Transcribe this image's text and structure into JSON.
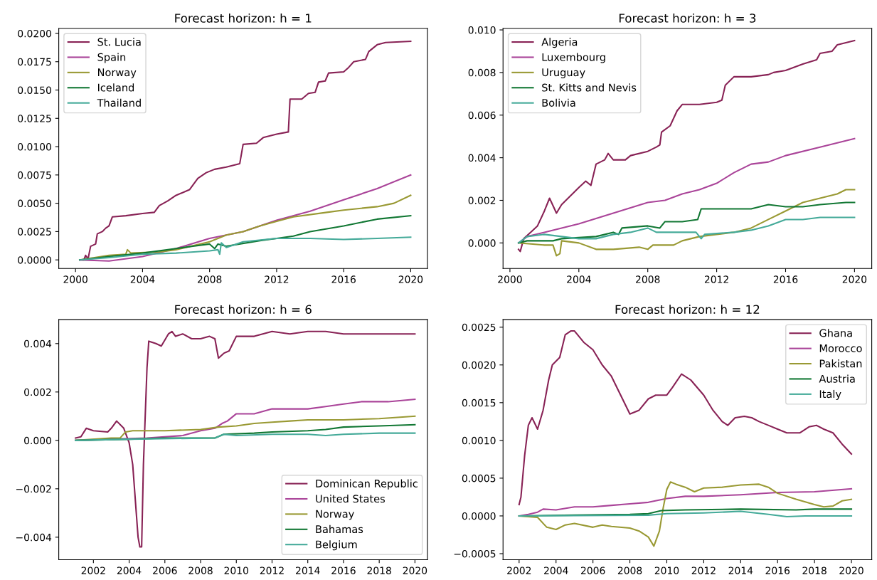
{
  "chart_data": [
    {
      "type": "line",
      "title": "Forecast horizon: h = 1",
      "legend": "top left",
      "grid": false,
      "xlim": [
        1999.0,
        2021.0
      ],
      "xticks": [
        2000,
        2004,
        2008,
        2012,
        2016,
        2020
      ],
      "ylim": [
        -0.00076,
        0.02044
      ],
      "yticks": [
        {
          "value": 0,
          "label": "0.0000"
        },
        {
          "value": 0.0025,
          "label": "0.0025"
        },
        {
          "value": 0.005,
          "label": "0.0050"
        },
        {
          "value": 0.0075,
          "label": "0.0075"
        },
        {
          "value": 0.01,
          "label": "0.0100"
        },
        {
          "value": 0.0125,
          "label": "0.0125"
        },
        {
          "value": 0.015,
          "label": "0.0150"
        },
        {
          "value": 0.0175,
          "label": "0.0175"
        },
        {
          "value": 0.02,
          "label": "0.0200"
        }
      ],
      "series": [
        {
          "name": "St. Lucia",
          "color": "#882255",
          "x": [
            2000.25,
            2000.5,
            2000.6,
            2000.75,
            2000.9,
            2001.2,
            2001.3,
            2001.6,
            2001.8,
            2002.0,
            2002.2,
            2003,
            2004,
            2004.7,
            2005,
            2005.5,
            2006,
            2006.8,
            2007.3,
            2007.8,
            2008.3,
            2009,
            2009.8,
            2010.0,
            2010.8,
            2011.2,
            2012,
            2012.7,
            2012.8,
            2013.5,
            2013.9,
            2014.3,
            2014.5,
            2014.9,
            2015.1,
            2016,
            2016.3,
            2016.6,
            2017.3,
            2017.5,
            2018,
            2018.5,
            2020
          ],
          "values": [
            0,
            0,
            0.0004,
            0.0001,
            0.0012,
            0.0014,
            0.0023,
            0.0025,
            0.0028,
            0.003,
            0.0038,
            0.0039,
            0.0041,
            0.0042,
            0.0048,
            0.0052,
            0.0057,
            0.0062,
            0.0072,
            0.0077,
            0.008,
            0.0082,
            0.0085,
            0.0102,
            0.0103,
            0.0108,
            0.0111,
            0.0113,
            0.0142,
            0.0142,
            0.0147,
            0.0148,
            0.0157,
            0.0158,
            0.0165,
            0.0166,
            0.017,
            0.0175,
            0.0177,
            0.0184,
            0.019,
            0.0192,
            0.0193
          ]
        },
        {
          "name": "Spain",
          "color": "#aa4499",
          "x": [
            2000.25,
            2002,
            2004,
            2006,
            2008,
            2010,
            2012,
            2014,
            2016,
            2018,
            2020
          ],
          "values": [
            0,
            -0.0001,
            0.0003,
            0.001,
            0.0019,
            0.0025,
            0.0035,
            0.0043,
            0.0053,
            0.0063,
            0.0075
          ]
        },
        {
          "name": "Norway",
          "color": "#999933",
          "x": [
            2000.25,
            2002,
            2003,
            2003.1,
            2003.3,
            2005,
            2006,
            2008,
            2009,
            2010,
            2011,
            2012,
            2013,
            2015,
            2016,
            2018,
            2019,
            2020
          ],
          "values": [
            0,
            0.0004,
            0.0005,
            0.0009,
            0.0006,
            0.0007,
            0.0009,
            0.0016,
            0.0022,
            0.0025,
            0.003,
            0.0034,
            0.0038,
            0.0042,
            0.0044,
            0.0047,
            0.005,
            0.0057
          ]
        },
        {
          "name": "Iceland",
          "color": "#117733",
          "x": [
            2000.25,
            2002,
            2004,
            2006,
            2007,
            2008,
            2008.3,
            2008.5,
            2009,
            2011,
            2012,
            2013,
            2014,
            2016,
            2018,
            2020
          ],
          "values": [
            0,
            0.0003,
            0.0006,
            0.001,
            0.0012,
            0.0014,
            0.001,
            0.0014,
            0.0012,
            0.0017,
            0.0019,
            0.0021,
            0.0025,
            0.003,
            0.0036,
            0.0039
          ]
        },
        {
          "name": "Thailand",
          "color": "#44aa99",
          "x": [
            2000.25,
            2002,
            2004,
            2006,
            2008,
            2008.5,
            2008.6,
            2008.7,
            2009,
            2010,
            2012,
            2014,
            2016,
            2018,
            2020
          ],
          "values": [
            0,
            0.0002,
            0.0005,
            0.0006,
            0.0008,
            0.0009,
            0.0005,
            0.0015,
            0.0011,
            0.0016,
            0.0019,
            0.0019,
            0.0018,
            0.0019,
            0.002
          ]
        }
      ]
    },
    {
      "type": "line",
      "title": "Forecast horizon: h = 3",
      "legend": "top left",
      "grid": false,
      "xlim": [
        1999.6,
        2021.0
      ],
      "xticks": [
        2000,
        2004,
        2008,
        2012,
        2016,
        2020
      ],
      "ylim": [
        -0.0012,
        0.01007
      ],
      "yticks": [
        {
          "value": 0,
          "label": "0.000"
        },
        {
          "value": 0.002,
          "label": "0.002"
        },
        {
          "value": 0.004,
          "label": "0.004"
        },
        {
          "value": 0.006,
          "label": "0.006"
        },
        {
          "value": 0.008,
          "label": "0.008"
        },
        {
          "value": 0.01,
          "label": "0.010"
        }
      ],
      "series": [
        {
          "name": "Algeria",
          "color": "#882255",
          "x": [
            2000.5,
            2000.6,
            2000.8,
            2001.2,
            2001.6,
            2002,
            2002.3,
            2002.7,
            2003,
            2003.5,
            2004,
            2004.4,
            2004.7,
            2005,
            2005.5,
            2005.7,
            2006,
            2006.7,
            2007,
            2008,
            2008.5,
            2008.7,
            2008.8,
            2009.3,
            2009.7,
            2010,
            2011,
            2012,
            2012.3,
            2012.5,
            2013,
            2014,
            2015,
            2015.3,
            2016,
            2017,
            2017.8,
            2018,
            2018.7,
            2019,
            2020
          ],
          "values": [
            -0.0003,
            -0.0004,
            0.0002,
            0.0005,
            0.0008,
            0.0015,
            0.0021,
            0.0014,
            0.0018,
            0.0022,
            0.0026,
            0.0029,
            0.0027,
            0.0037,
            0.0039,
            0.0042,
            0.0039,
            0.0039,
            0.0041,
            0.0043,
            0.0045,
            0.0046,
            0.0052,
            0.0055,
            0.0062,
            0.0065,
            0.0065,
            0.0066,
            0.0067,
            0.0074,
            0.0078,
            0.0078,
            0.0079,
            0.008,
            0.0081,
            0.0084,
            0.0086,
            0.0089,
            0.009,
            0.0093,
            0.0095
          ]
        },
        {
          "name": "Luxembourg",
          "color": "#aa4499",
          "x": [
            2000.5,
            2001,
            2002,
            2004,
            2006,
            2008,
            2009,
            2010,
            2011,
            2012,
            2013,
            2014,
            2015,
            2016,
            2018,
            2020
          ],
          "values": [
            0,
            0.0003,
            0.0005,
            0.0009,
            0.0014,
            0.0019,
            0.002,
            0.0023,
            0.0025,
            0.0028,
            0.0033,
            0.0037,
            0.0038,
            0.0041,
            0.0045,
            0.0049
          ]
        },
        {
          "name": "Uruguay",
          "color": "#999933",
          "x": [
            2000.5,
            2002,
            2002.5,
            2002.7,
            2002.9,
            2003,
            2004,
            2005,
            2006,
            2007.5,
            2008,
            2008.3,
            2009.5,
            2010,
            2011,
            2012,
            2013,
            2014,
            2015,
            2016,
            2017,
            2018,
            2019,
            2019.5,
            2020
          ],
          "values": [
            0,
            -0.0001,
            -0.0001,
            -0.0006,
            -0.0005,
            0.0001,
            0,
            -0.0003,
            -0.0003,
            -0.0002,
            -0.0003,
            -0.0001,
            -0.0001,
            0.0001,
            0.0003,
            0.0004,
            0.0005,
            0.0007,
            0.0011,
            0.0015,
            0.0019,
            0.0021,
            0.0023,
            0.0025,
            0.0025
          ]
        },
        {
          "name": "St. Kitts and Nevis",
          "color": "#117733",
          "x": [
            2000.5,
            2001,
            2002.5,
            2003,
            2005,
            2006,
            2006.3,
            2006.5,
            2008,
            2008.7,
            2009,
            2010,
            2010.9,
            2011.1,
            2013,
            2014,
            2015,
            2016,
            2017,
            2018,
            2019.5,
            2020
          ],
          "values": [
            0,
            0.0001,
            0.0001,
            0.0002,
            0.0003,
            0.0005,
            0.0004,
            0.0007,
            0.0008,
            0.0007,
            0.001,
            0.001,
            0.0011,
            0.0016,
            0.0016,
            0.0016,
            0.0018,
            0.0017,
            0.0017,
            0.0018,
            0.0019,
            0.0019
          ]
        },
        {
          "name": "Bolivia",
          "color": "#44aa99",
          "x": [
            2000.5,
            2001,
            2002,
            2003,
            2004,
            2005,
            2006,
            2007,
            2008,
            2008.5,
            2010,
            2010.8,
            2011.1,
            2011.3,
            2013,
            2014,
            2015,
            2016,
            2017,
            2018,
            2020
          ],
          "values": [
            0,
            0.0003,
            0.0004,
            0.0003,
            0.0002,
            0.0002,
            0.0004,
            0.0005,
            0.0007,
            0.0005,
            0.0005,
            0.0005,
            0.0002,
            0.0004,
            0.0005,
            0.0006,
            0.0008,
            0.0011,
            0.0011,
            0.0012,
            0.0012
          ]
        }
      ]
    },
    {
      "type": "line",
      "title": "Forecast horizon: h = 6",
      "legend": "bottom right",
      "grid": false,
      "xlim": [
        2000.06,
        2020.7
      ],
      "xticks": [
        2002,
        2004,
        2006,
        2008,
        2010,
        2012,
        2014,
        2016,
        2018,
        2020
      ],
      "ylim": [
        -0.00493,
        0.00499
      ],
      "yticks": [
        {
          "value": -0.004,
          "label": "−0.004"
        },
        {
          "value": -0.002,
          "label": "−0.002"
        },
        {
          "value": 0,
          "label": "0.000"
        },
        {
          "value": 0.002,
          "label": "0.002"
        },
        {
          "value": 0.004,
          "label": "0.004"
        }
      ],
      "series": [
        {
          "name": "Dominican Republic",
          "color": "#882255",
          "x": [
            2001,
            2001.3,
            2001.6,
            2002,
            2002.8,
            2003,
            2003.3,
            2003.7,
            2004,
            2004.2,
            2004.5,
            2004.6,
            2004.7,
            2004.8,
            2005,
            2005.1,
            2005.5,
            2005.8,
            2006.2,
            2006.4,
            2006.6,
            2007,
            2007.5,
            2008,
            2008.5,
            2008.8,
            2009,
            2009.3,
            2009.6,
            2010,
            2011,
            2012,
            2013,
            2014,
            2015,
            2016,
            2017,
            2018,
            2019,
            2020
          ],
          "values": [
            0.0001,
            0.00015,
            0.0005,
            0.0004,
            0.00035,
            0.0005,
            0.0008,
            0.0005,
            -0.0001,
            -0.001,
            -0.004,
            -0.0044,
            -0.0044,
            -0.001,
            0.003,
            0.0041,
            0.004,
            0.0039,
            0.0044,
            0.0045,
            0.0043,
            0.0044,
            0.0042,
            0.0042,
            0.0043,
            0.0042,
            0.0034,
            0.0036,
            0.0037,
            0.0043,
            0.0043,
            0.0045,
            0.0044,
            0.0045,
            0.0045,
            0.0044,
            0.0044,
            0.0044,
            0.0044,
            0.0044
          ]
        },
        {
          "name": "United States",
          "color": "#aa4499",
          "x": [
            2001,
            2003,
            2005,
            2007,
            2008,
            2008.8,
            2009.2,
            2009.5,
            2010,
            2011,
            2012,
            2014,
            2015,
            2016,
            2017,
            2018.5,
            2020
          ],
          "values": [
            0,
            5e-05,
            0.0001,
            0.0002,
            0.0004,
            0.0005,
            0.0007,
            0.0008,
            0.0011,
            0.0011,
            0.0013,
            0.0013,
            0.0014,
            0.0015,
            0.0016,
            0.0016,
            0.0017
          ]
        },
        {
          "name": "Norway",
          "color": "#999933",
          "x": [
            2001,
            2003,
            2003.5,
            2003.8,
            2004.2,
            2006,
            2008,
            2009,
            2010,
            2011,
            2012,
            2013,
            2014,
            2016,
            2018,
            2020
          ],
          "values": [
            0,
            0.0001,
            0.0001,
            0.00035,
            0.0004,
            0.0004,
            0.00045,
            0.00055,
            0.0006,
            0.0007,
            0.00075,
            0.0008,
            0.00085,
            0.00085,
            0.0009,
            0.001
          ]
        },
        {
          "name": "Bahamas",
          "color": "#117733",
          "x": [
            2001,
            2004,
            2006,
            2008.8,
            2009.3,
            2011,
            2012,
            2014,
            2015,
            2016,
            2018,
            2020
          ],
          "values": [
            0,
            5e-05,
            0.0001,
            0.0001,
            0.00025,
            0.0003,
            0.00035,
            0.0004,
            0.00045,
            0.00055,
            0.0006,
            0.00065
          ]
        },
        {
          "name": "Belgium",
          "color": "#44aa99",
          "x": [
            2001,
            2004,
            2008.8,
            2009.3,
            2010,
            2012,
            2014,
            2015,
            2016,
            2018,
            2020
          ],
          "values": [
            0,
            5e-05,
            0.0001,
            0.00025,
            0.0002,
            0.00025,
            0.00025,
            0.0002,
            0.00025,
            0.0003,
            0.0003
          ]
        }
      ]
    },
    {
      "type": "line",
      "title": "Forecast horizon: h = 12",
      "legend": "top right",
      "grid": false,
      "xlim": [
        2001.13,
        2021.1
      ],
      "xticks": [
        2002,
        2004,
        2006,
        2008,
        2010,
        2012,
        2014,
        2016,
        2018,
        2020
      ],
      "ylim": [
        -0.00058,
        0.0026
      ],
      "yticks": [
        {
          "value": -0.0005,
          "label": "−0.0005"
        },
        {
          "value": 0,
          "label": "0.0000"
        },
        {
          "value": 0.0005,
          "label": "0.0005"
        },
        {
          "value": 0.001,
          "label": "0.0010"
        },
        {
          "value": 0.0015,
          "label": "0.0015"
        },
        {
          "value": 0.002,
          "label": "0.0020"
        },
        {
          "value": 0.0025,
          "label": "0.0025"
        }
      ],
      "series": [
        {
          "name": "Ghana",
          "color": "#882255",
          "x": [
            2002,
            2002.1,
            2002.3,
            2002.5,
            2002.7,
            2003,
            2003.3,
            2003.6,
            2003.8,
            2004,
            2004.2,
            2004.5,
            2004.8,
            2005,
            2005.5,
            2006,
            2006.5,
            2007,
            2007.5,
            2008,
            2008.5,
            2009,
            2009.4,
            2010,
            2010.3,
            2010.8,
            2011.3,
            2012,
            2012.5,
            2013,
            2013.3,
            2013.7,
            2014.2,
            2014.6,
            2015,
            2015.5,
            2016,
            2016.5,
            2017.2,
            2017.7,
            2018.1,
            2018.5,
            2019,
            2019.5,
            2020
          ],
          "values": [
            0.00015,
            0.00025,
            0.0008,
            0.0012,
            0.0013,
            0.00115,
            0.0014,
            0.0018,
            0.002,
            0.00205,
            0.0021,
            0.0024,
            0.00245,
            0.00245,
            0.0023,
            0.0022,
            0.002,
            0.00185,
            0.0016,
            0.00135,
            0.0014,
            0.00155,
            0.0016,
            0.0016,
            0.0017,
            0.00188,
            0.0018,
            0.0016,
            0.0014,
            0.00125,
            0.0012,
            0.0013,
            0.00132,
            0.0013,
            0.00125,
            0.0012,
            0.00115,
            0.0011,
            0.0011,
            0.00118,
            0.0012,
            0.00115,
            0.0011,
            0.00095,
            0.00082
          ]
        },
        {
          "name": "Morocco",
          "color": "#aa4499",
          "x": [
            2002,
            2002.5,
            2003,
            2003.3,
            2004,
            2005,
            2006,
            2007,
            2008,
            2009,
            2010,
            2011,
            2012,
            2014,
            2016,
            2018,
            2020
          ],
          "values": [
            0,
            2e-05,
            5e-05,
            9e-05,
            8e-05,
            0.00012,
            0.00012,
            0.00014,
            0.00016,
            0.00018,
            0.00023,
            0.00026,
            0.00026,
            0.00028,
            0.00031,
            0.00032,
            0.00036
          ]
        },
        {
          "name": "Pakistan",
          "color": "#999933",
          "x": [
            2002,
            2003,
            2003.5,
            2004,
            2004.5,
            2005,
            2006,
            2006.5,
            2007,
            2008,
            2008.5,
            2009,
            2009.3,
            2009.6,
            2009.8,
            2010,
            2010.2,
            2010.5,
            2011,
            2011.5,
            2012,
            2013,
            2014,
            2015,
            2015.5,
            2016,
            2017,
            2018,
            2018.5,
            2019,
            2019.5,
            2020
          ],
          "values": [
            0,
            -2e-05,
            -0.00015,
            -0.00018,
            -0.00012,
            -0.0001,
            -0.00015,
            -0.00012,
            -0.00014,
            -0.00016,
            -0.0002,
            -0.00028,
            -0.0004,
            -0.0002,
            0.0001,
            0.00035,
            0.00045,
            0.00042,
            0.00038,
            0.00032,
            0.00037,
            0.00038,
            0.00041,
            0.00042,
            0.00038,
            0.0003,
            0.00022,
            0.00015,
            0.00012,
            0.00013,
            0.0002,
            0.00022
          ]
        },
        {
          "name": "Austria",
          "color": "#117733",
          "x": [
            2002,
            2005,
            2008,
            2009,
            2009.7,
            2011,
            2014,
            2017,
            2018,
            2020
          ],
          "values": [
            0,
            1e-05,
            2e-05,
            3e-05,
            7e-05,
            8e-05,
            9e-05,
            8e-05,
            9e-05,
            9e-05
          ]
        },
        {
          "name": "Italy",
          "color": "#44aa99",
          "x": [
            2002,
            2009,
            2010,
            2012,
            2014,
            2015.5,
            2016.5,
            2017.5,
            2020
          ],
          "values": [
            0,
            1e-05,
            3e-05,
            4e-05,
            6e-05,
            2e-05,
            -1e-05,
            0,
            0
          ]
        }
      ]
    }
  ]
}
